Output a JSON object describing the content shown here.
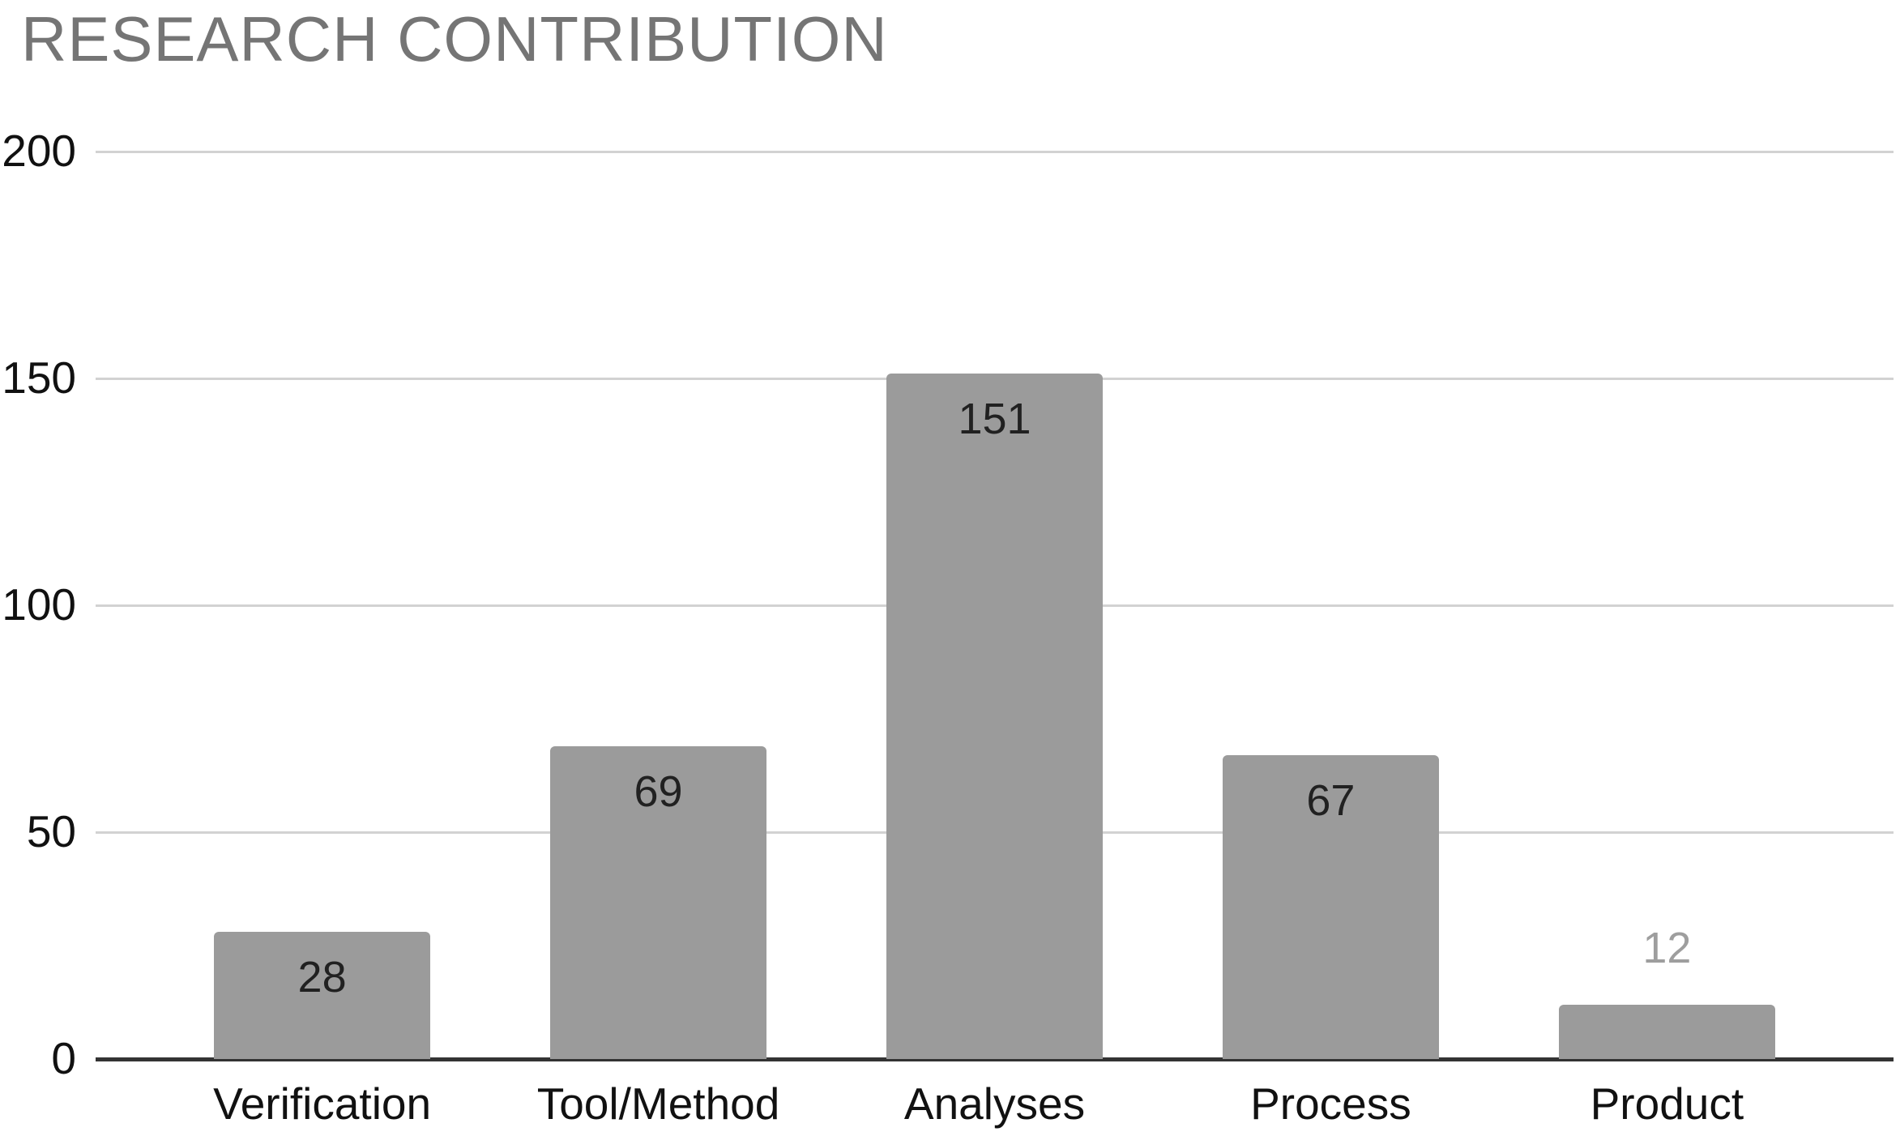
{
  "chart_data": {
    "type": "bar",
    "title": "RESEARCH CONTRIBUTION",
    "categories": [
      "Verification",
      "Tool/Method",
      "Analyses",
      "Process",
      "Product"
    ],
    "values": [
      28,
      69,
      151,
      67,
      12
    ],
    "xlabel": "",
    "ylabel": "",
    "ylim": [
      0,
      200
    ],
    "yticks": [
      0,
      50,
      100,
      150,
      200
    ],
    "grid": true,
    "legend": "none",
    "data_labels_shown": true,
    "colors": {
      "bar_fill": "#9b9b9b",
      "label_inside": "#212121",
      "label_outside": "#9e9e9e",
      "gridline": "#d2d2d2",
      "axis_line": "#333333",
      "tick_label": "#111111",
      "title": "#757575",
      "background": "#ffffff"
    }
  }
}
